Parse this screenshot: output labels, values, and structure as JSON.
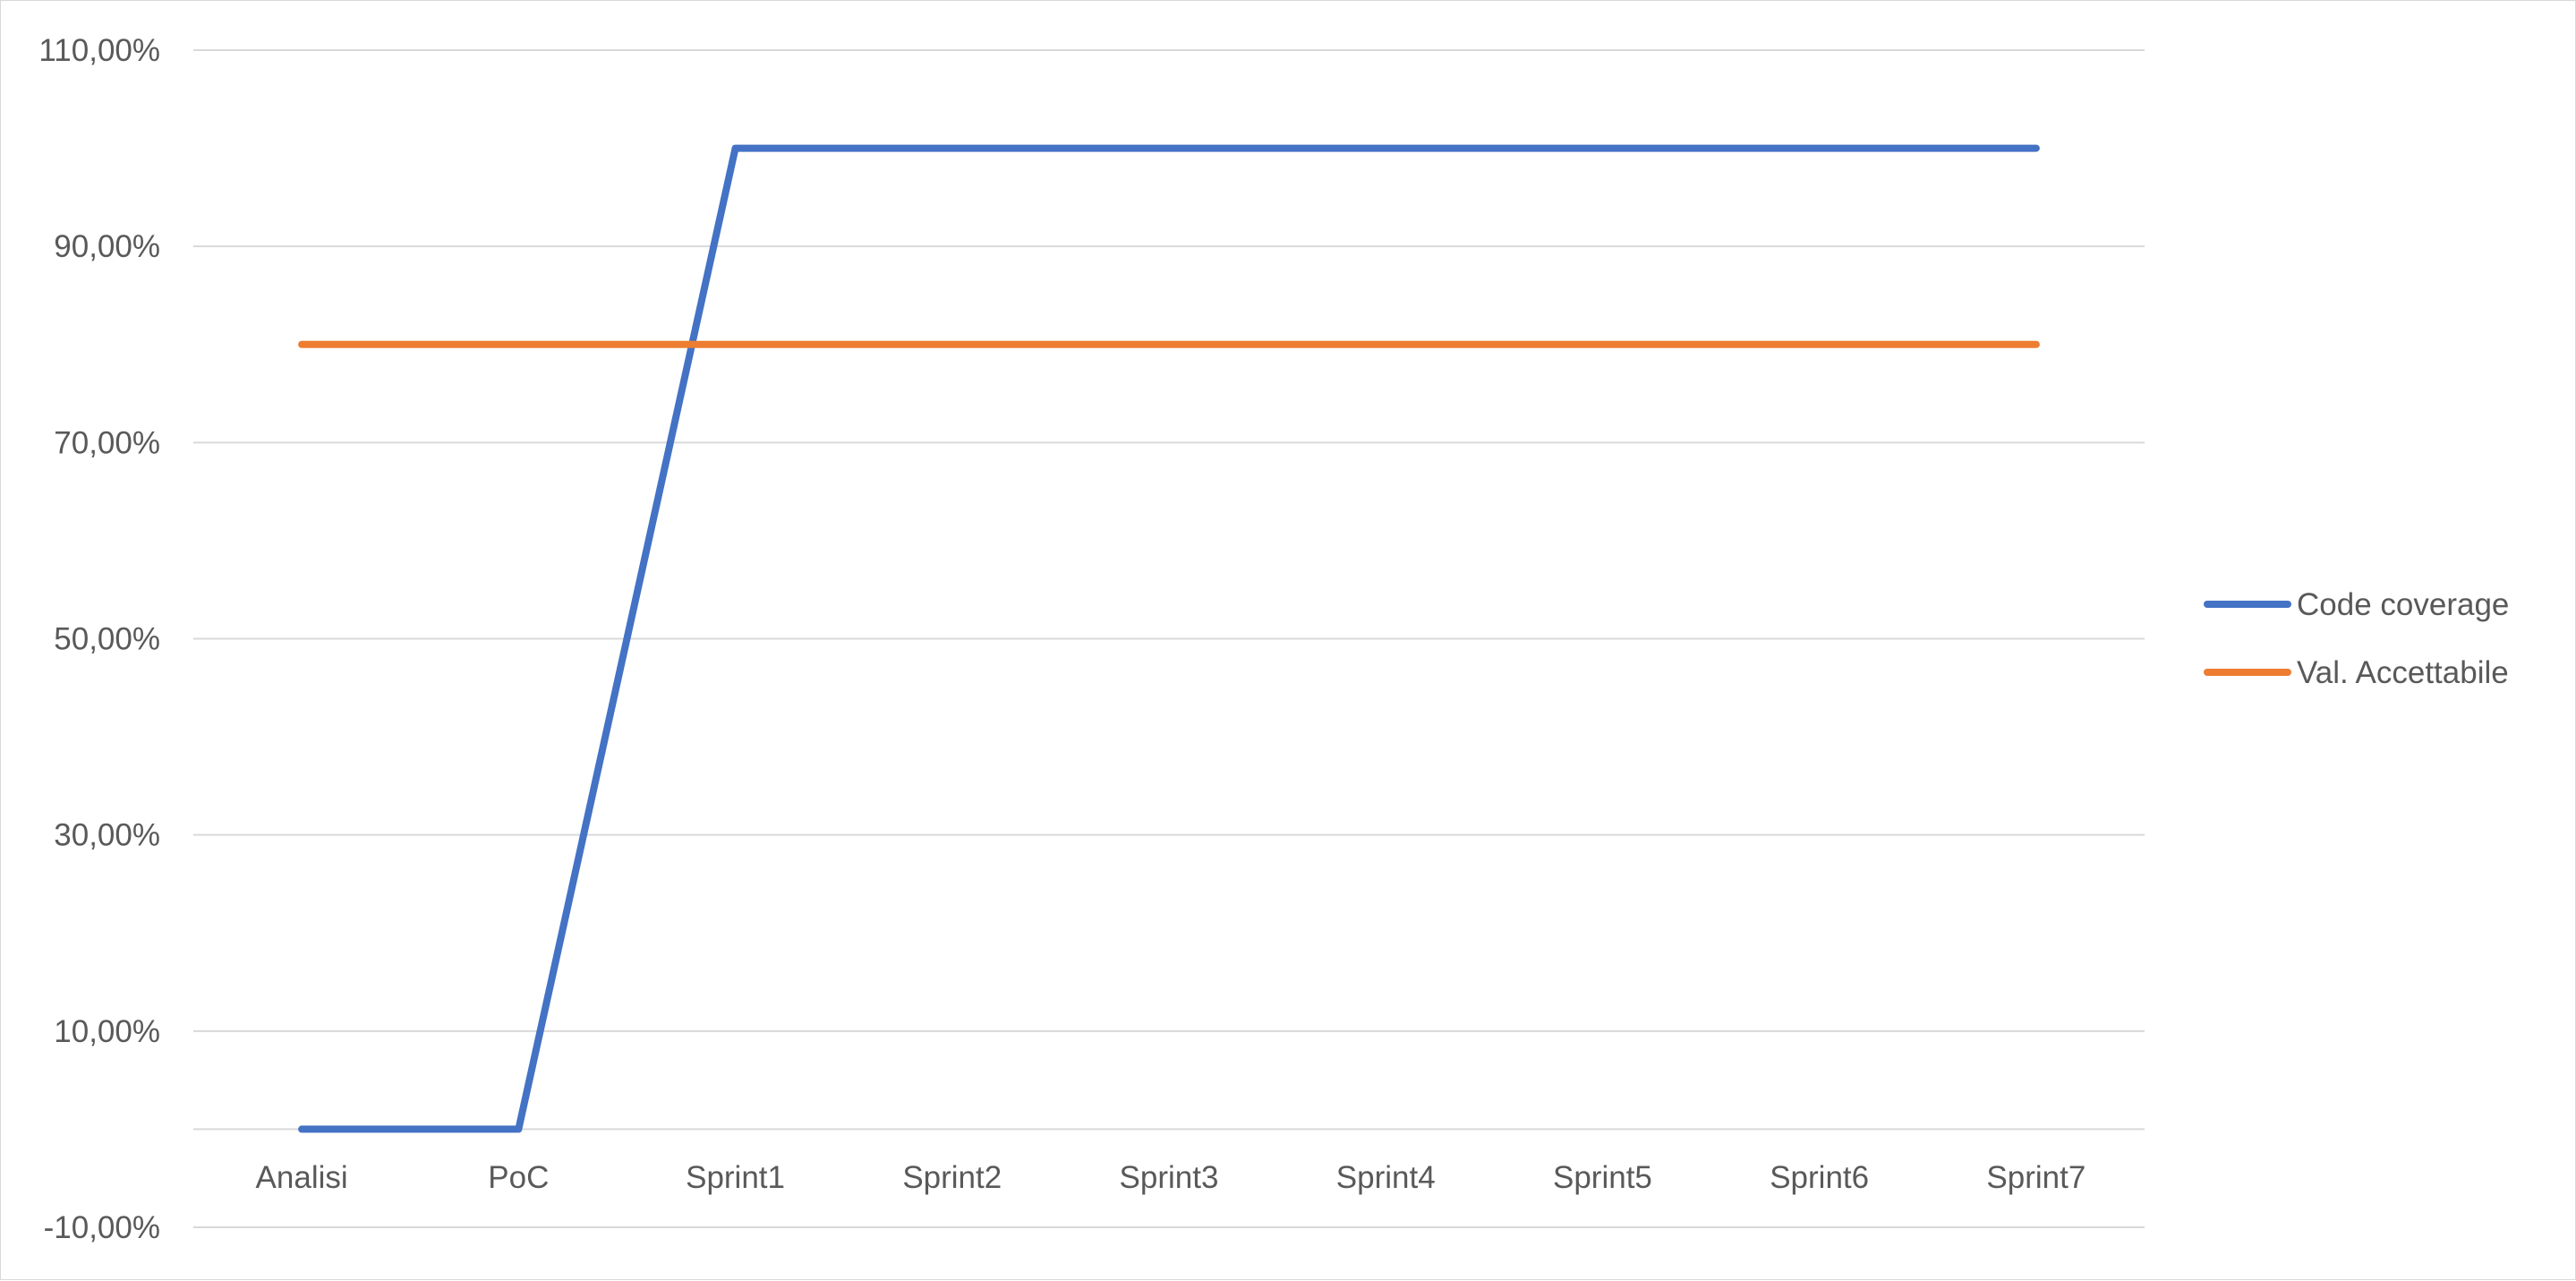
{
  "chart_data": {
    "type": "line",
    "title": "",
    "xlabel": "",
    "ylabel": "",
    "categories": [
      "Analisi",
      "PoC",
      "Sprint1",
      "Sprint2",
      "Sprint3",
      "Sprint4",
      "Sprint5",
      "Sprint6",
      "Sprint7"
    ],
    "series": [
      {
        "name": "Code coverage",
        "color": "#4472C4",
        "values": [
          0,
          0,
          100,
          100,
          100,
          100,
          100,
          100,
          100
        ]
      },
      {
        "name": "Val. Accettabile",
        "color": "#ED7D31",
        "values": [
          80,
          80,
          80,
          80,
          80,
          80,
          80,
          80,
          80
        ]
      }
    ],
    "ylim": [
      -10,
      110
    ],
    "yticks": [
      -10,
      0,
      10,
      30,
      50,
      70,
      90,
      110
    ],
    "ytick_labels": [
      "-10,00%",
      "",
      "10,00%",
      "30,00%",
      "50,00%",
      "70,00%",
      "90,00%",
      "110,00%"
    ],
    "grid": true,
    "legend_position": "right"
  }
}
